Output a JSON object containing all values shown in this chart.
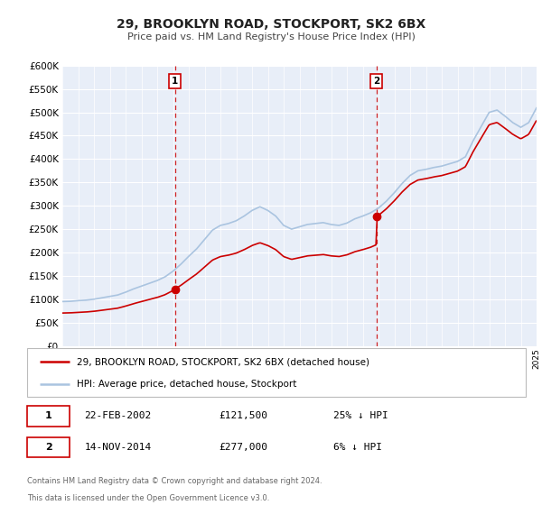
{
  "title": "29, BROOKLYN ROAD, STOCKPORT, SK2 6BX",
  "subtitle": "Price paid vs. HM Land Registry's House Price Index (HPI)",
  "background_color": "#ffffff",
  "plot_background_color": "#e8eef8",
  "grid_color": "#ffffff",
  "hpi_color": "#aac4e0",
  "price_color": "#cc0000",
  "sale1_date": "22-FEB-2002",
  "sale1_price": 121500,
  "sale1_pct": "25%",
  "sale2_date": "14-NOV-2014",
  "sale2_price": 277000,
  "sale2_pct": "6%",
  "sale1_x": 2002.13,
  "sale2_x": 2014.87,
  "legend_label1": "29, BROOKLYN ROAD, STOCKPORT, SK2 6BX (detached house)",
  "legend_label2": "HPI: Average price, detached house, Stockport",
  "footnote1": "Contains HM Land Registry data © Crown copyright and database right 2024.",
  "footnote2": "This data is licensed under the Open Government Licence v3.0.",
  "ylim_max": 600000,
  "xmin": 1995,
  "xmax": 2025,
  "hpi_years": [
    1995,
    1995.5,
    1996,
    1996.5,
    1997,
    1997.5,
    1998,
    1998.5,
    1999,
    1999.5,
    2000,
    2000.5,
    2001,
    2001.5,
    2002,
    2002.5,
    2003,
    2003.5,
    2004,
    2004.5,
    2005,
    2005.5,
    2006,
    2006.5,
    2007,
    2007.5,
    2008,
    2008.5,
    2009,
    2009.5,
    2010,
    2010.5,
    2011,
    2011.5,
    2012,
    2012.5,
    2013,
    2013.5,
    2014,
    2014.5,
    2015,
    2015.5,
    2016,
    2016.5,
    2017,
    2017.5,
    2018,
    2018.5,
    2019,
    2019.5,
    2020,
    2020.5,
    2021,
    2021.5,
    2022,
    2022.5,
    2023,
    2023.5,
    2024,
    2024.5,
    2025
  ],
  "hpi_values": [
    95000,
    95500,
    97000,
    98000,
    100000,
    103000,
    106000,
    109000,
    115000,
    122000,
    128000,
    134000,
    140000,
    148000,
    160000,
    175000,
    192000,
    208000,
    228000,
    248000,
    258000,
    262000,
    268000,
    278000,
    290000,
    298000,
    290000,
    278000,
    258000,
    250000,
    255000,
    260000,
    262000,
    264000,
    260000,
    258000,
    263000,
    272000,
    278000,
    285000,
    295000,
    310000,
    328000,
    348000,
    365000,
    375000,
    378000,
    382000,
    385000,
    390000,
    395000,
    405000,
    440000,
    470000,
    500000,
    505000,
    492000,
    478000,
    468000,
    478000,
    510000
  ]
}
